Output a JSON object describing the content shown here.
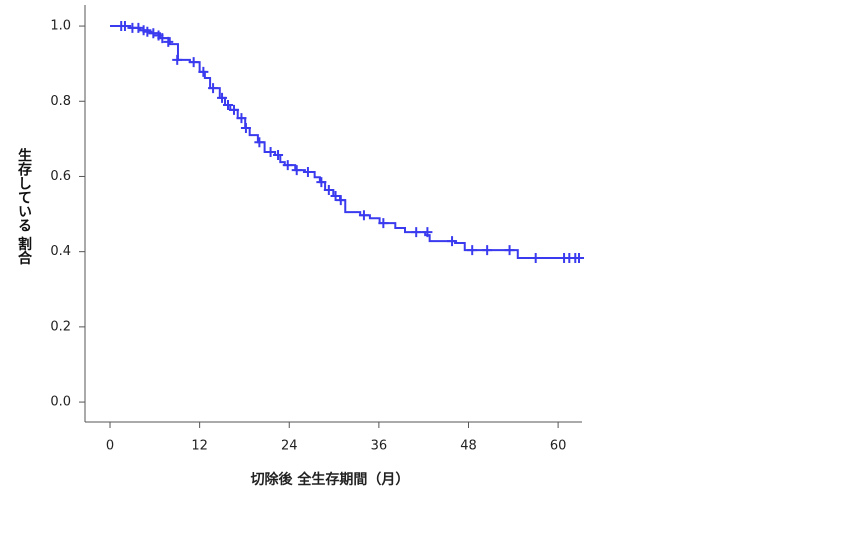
{
  "chart_data": {
    "type": "line",
    "step": "post",
    "x_label": "切除後  全生存期間（月）",
    "y_label": "生存している 割合",
    "xlim": [
      -3.35,
      63.2
    ],
    "ylim": [
      -0.053,
      1.056
    ],
    "xticks": [
      0,
      12,
      24,
      36,
      48,
      60
    ],
    "yticks": [
      {
        "value": 0,
        "label": "0.0"
      },
      {
        "value": 0.2,
        "label": "0.2"
      },
      {
        "value": 0.4,
        "label": "0.4"
      },
      {
        "value": 0.6,
        "label": "0.6"
      },
      {
        "value": 0.8,
        "label": "0.8"
      },
      {
        "value": 1,
        "label": "1.0"
      }
    ],
    "series": [
      {
        "color": "#3a3aef",
        "x": [
          0,
          2.7,
          4.0,
          5.4,
          6.7,
          8.0,
          9.1,
          10.7,
          12.0,
          12.7,
          13.4,
          14.7,
          15.4,
          16.1,
          17.1,
          18.1,
          18.7,
          19.8,
          20.7,
          22.1,
          22.8,
          23.4,
          24.8,
          26.1,
          27.4,
          28.1,
          28.8,
          29.9,
          30.8,
          31.5,
          33.5,
          34.8,
          36.1,
          38.2,
          39.5,
          42.2,
          42.8,
          46.2,
          47.5,
          54.6,
          63.0
        ],
        "values": [
          1.0,
          0.995,
          0.989,
          0.981,
          0.968,
          0.952,
          0.91,
          0.904,
          0.878,
          0.862,
          0.835,
          0.809,
          0.79,
          0.777,
          0.755,
          0.729,
          0.71,
          0.691,
          0.665,
          0.657,
          0.638,
          0.63,
          0.617,
          0.612,
          0.598,
          0.585,
          0.564,
          0.548,
          0.537,
          0.505,
          0.497,
          0.489,
          0.476,
          0.463,
          0.452,
          0.444,
          0.428,
          0.423,
          0.404,
          0.383,
          0.383
        ]
      },
      {
        "color": "#3a3aef",
        "marker": "plus",
        "x": [
          1.5,
          2.0,
          3.0,
          3.8,
          4.5,
          5.0,
          5.8,
          6.5,
          7.0,
          7.8,
          9.0,
          11.2,
          12.5,
          13.8,
          15.0,
          15.8,
          16.6,
          17.6,
          18.2,
          20.0,
          21.5,
          22.5,
          23.8,
          25.0,
          26.5,
          28.3,
          29.3,
          30.2,
          30.9,
          34.0,
          36.6,
          41.0,
          42.5,
          45.8,
          48.5,
          50.5,
          53.5,
          57.0,
          60.8,
          61.5,
          62.3,
          62.8
        ],
        "values": [
          1.0,
          1.0,
          0.995,
          0.995,
          0.989,
          0.985,
          0.981,
          0.975,
          0.968,
          0.958,
          0.91,
          0.904,
          0.878,
          0.835,
          0.809,
          0.79,
          0.777,
          0.755,
          0.729,
          0.691,
          0.665,
          0.657,
          0.63,
          0.617,
          0.612,
          0.585,
          0.564,
          0.548,
          0.537,
          0.497,
          0.476,
          0.452,
          0.452,
          0.428,
          0.404,
          0.404,
          0.404,
          0.383,
          0.383,
          0.383,
          0.383,
          0.383
        ]
      }
    ]
  }
}
